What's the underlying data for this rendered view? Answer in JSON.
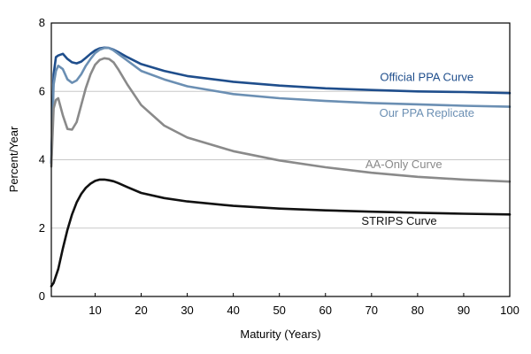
{
  "chart_data": {
    "type": "line",
    "title": "",
    "xlabel": "Maturity (Years)",
    "ylabel": "Percent/Year",
    "xlim": [
      0.5,
      100
    ],
    "ylim": [
      0,
      8
    ],
    "xticks": [
      10,
      20,
      30,
      40,
      50,
      60,
      70,
      80,
      90,
      100
    ],
    "yticks": [
      0,
      2,
      4,
      6,
      8
    ],
    "grid": "horizontal",
    "series": [
      {
        "name": "Official PPA Curve",
        "color": "#1f4e8c",
        "x": [
          0.5,
          1,
          1.5,
          2,
          3,
          4,
          5,
          6,
          7,
          8,
          9,
          10,
          11,
          12,
          13,
          14,
          15,
          17,
          20,
          25,
          30,
          40,
          50,
          60,
          70,
          80,
          90,
          100
        ],
        "y": [
          3.9,
          6.5,
          7.0,
          7.05,
          7.1,
          6.95,
          6.85,
          6.82,
          6.87,
          6.98,
          7.1,
          7.2,
          7.26,
          7.28,
          7.27,
          7.22,
          7.15,
          7.0,
          6.8,
          6.6,
          6.45,
          6.28,
          6.17,
          6.09,
          6.04,
          6.0,
          5.98,
          5.95
        ]
      },
      {
        "name": "Our PPA Replicate",
        "color": "#6b8fb3",
        "x": [
          0.5,
          1,
          1.5,
          2,
          3,
          4,
          5,
          6,
          7,
          8,
          9,
          10,
          11,
          12,
          13,
          14,
          15,
          17,
          20,
          25,
          30,
          40,
          50,
          60,
          70,
          80,
          90,
          100
        ],
        "y": [
          3.9,
          6.2,
          6.6,
          6.75,
          6.65,
          6.35,
          6.25,
          6.32,
          6.5,
          6.75,
          6.95,
          7.12,
          7.22,
          7.27,
          7.27,
          7.2,
          7.1,
          6.9,
          6.6,
          6.35,
          6.15,
          5.92,
          5.8,
          5.72,
          5.66,
          5.62,
          5.58,
          5.55
        ]
      },
      {
        "name": "AA-Only Curve",
        "color": "#8a8a8a",
        "x": [
          0.5,
          1,
          1.5,
          2,
          3,
          4,
          5,
          6,
          7,
          8,
          9,
          10,
          11,
          12,
          13,
          14,
          15,
          17,
          20,
          25,
          30,
          40,
          50,
          60,
          70,
          80,
          90,
          100
        ],
        "y": [
          3.8,
          5.5,
          5.75,
          5.8,
          5.3,
          4.9,
          4.88,
          5.1,
          5.6,
          6.1,
          6.5,
          6.78,
          6.92,
          6.97,
          6.95,
          6.85,
          6.65,
          6.2,
          5.6,
          5.0,
          4.65,
          4.25,
          3.98,
          3.78,
          3.62,
          3.5,
          3.42,
          3.36
        ]
      },
      {
        "name": "STRIPS Curve",
        "color": "#111111",
        "x": [
          0.5,
          1,
          2,
          3,
          4,
          5,
          6,
          7,
          8,
          9,
          10,
          11,
          12,
          13,
          14,
          15,
          17,
          20,
          25,
          30,
          40,
          50,
          60,
          70,
          80,
          90,
          100
        ],
        "y": [
          0.3,
          0.4,
          0.8,
          1.4,
          1.95,
          2.4,
          2.75,
          3.0,
          3.18,
          3.3,
          3.38,
          3.42,
          3.42,
          3.4,
          3.37,
          3.32,
          3.2,
          3.03,
          2.88,
          2.78,
          2.65,
          2.57,
          2.52,
          2.48,
          2.45,
          2.42,
          2.4
        ]
      }
    ],
    "series_labels": [
      {
        "name": "Official PPA Curve",
        "at_x": 82,
        "at_y": 6.3
      },
      {
        "name": "Our PPA Replicate",
        "at_x": 82,
        "at_y": 5.25
      },
      {
        "name": "AA-Only Curve",
        "at_x": 77,
        "at_y": 3.75
      },
      {
        "name": "STRIPS Curve",
        "at_x": 76,
        "at_y": 2.1
      }
    ]
  }
}
